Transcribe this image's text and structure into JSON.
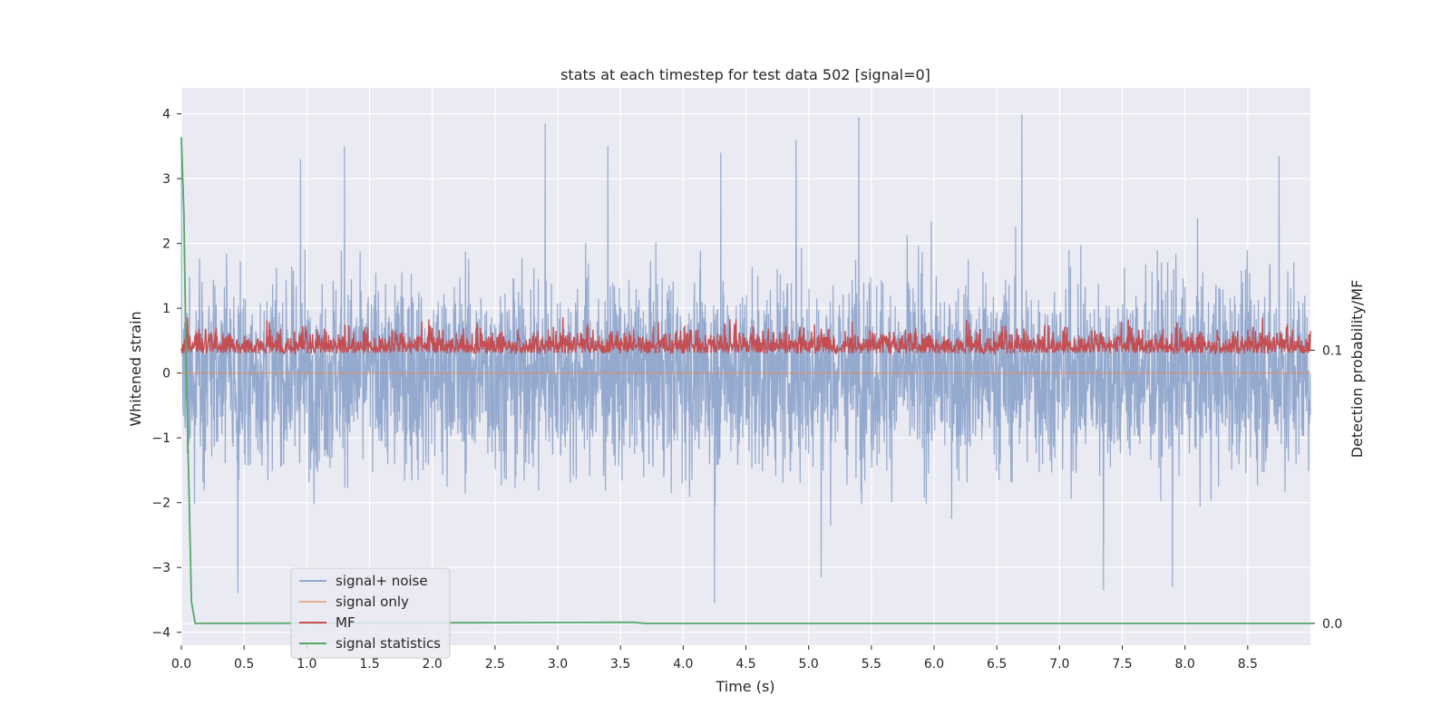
{
  "chart_data": {
    "type": "line",
    "title": "stats at each timestep for test data 502 [signal=0]",
    "xlabel": "Time (s)",
    "ylabel": "Whitened strain",
    "ylabel_right": "Detection probability/MF",
    "xlim": [
      0.0,
      9.0
    ],
    "ylim": [
      -4.2,
      4.4
    ],
    "ylim_right": [
      -0.008,
      0.196
    ],
    "x_ticks": [
      "0.0",
      "0.5",
      "1.0",
      "1.5",
      "2.0",
      "2.5",
      "3.0",
      "3.5",
      "4.0",
      "4.5",
      "5.0",
      "5.5",
      "6.0",
      "6.5",
      "7.0",
      "7.5",
      "8.0",
      "8.5"
    ],
    "y_ticks": [
      "4",
      "3",
      "2",
      "1",
      "0",
      "−1",
      "−2",
      "−3",
      "−4"
    ],
    "y_right_ticks": [
      "0.1",
      "0.0"
    ],
    "grid": true,
    "legend_position": "lower-left",
    "series": [
      {
        "name": "signal+ noise",
        "color": "#4c72b0",
        "axis": "left",
        "description": "whitened strain noise, roughly symmetric around 0 with peaks up to about +4.0 and down to about -3.5",
        "notable_peaks": [
          {
            "x": 0.0,
            "y": 3.6
          },
          {
            "x": 0.95,
            "y": 3.3
          },
          {
            "x": 1.3,
            "y": 3.5
          },
          {
            "x": 2.9,
            "y": 3.85
          },
          {
            "x": 3.4,
            "y": 3.5
          },
          {
            "x": 4.3,
            "y": 3.4
          },
          {
            "x": 4.9,
            "y": 3.6
          },
          {
            "x": 5.4,
            "y": 3.95
          },
          {
            "x": 6.7,
            "y": 4.0
          },
          {
            "x": 8.75,
            "y": 3.35
          },
          {
            "x": 0.45,
            "y": -3.4
          },
          {
            "x": 4.25,
            "y": -3.55
          },
          {
            "x": 7.35,
            "y": -3.35
          },
          {
            "x": 7.9,
            "y": -3.3
          },
          {
            "x": 5.1,
            "y": -3.15
          }
        ],
        "y_range": [
          -3.6,
          4.0
        ]
      },
      {
        "name": "signal only",
        "color": "#dd8452",
        "axis": "left",
        "values_constant": 0.0
      },
      {
        "name": "MF",
        "color": "#c44e52",
        "axis": "left",
        "description": "matched filter output fluctuating between 0 and about 1.0",
        "y_range": [
          0.0,
          1.0
        ]
      },
      {
        "name": "signal statistics",
        "color": "#55a868",
        "axis": "right",
        "x": [
          0.0,
          0.02,
          0.04,
          0.06,
          0.08,
          0.11,
          3.6,
          3.7,
          9.0
        ],
        "values": [
          0.178,
          0.15,
          0.09,
          0.05,
          0.008,
          0.0,
          0.0004,
          0.0,
          0.0
        ]
      }
    ]
  }
}
